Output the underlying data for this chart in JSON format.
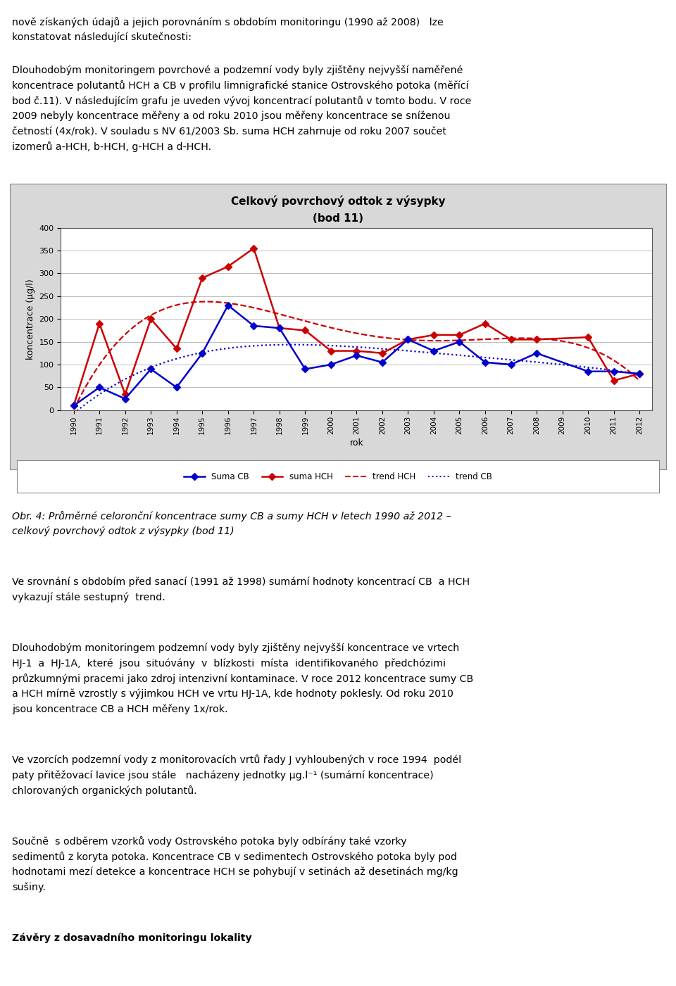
{
  "title_line1": "Celkový povrchový odtok z výsypky",
  "title_line2": "(bod 11)",
  "xlabel": "rok",
  "ylabel": "koncentrace (µg/l)",
  "years": [
    1990,
    1991,
    1992,
    1993,
    1994,
    1995,
    1996,
    1997,
    1998,
    1999,
    2000,
    2001,
    2002,
    2003,
    2004,
    2005,
    2006,
    2007,
    2008,
    2010,
    2011,
    2012
  ],
  "suma_cb": [
    10,
    50,
    25,
    90,
    50,
    125,
    230,
    185,
    180,
    90,
    100,
    120,
    105,
    155,
    130,
    150,
    105,
    100,
    125,
    85,
    85,
    80
  ],
  "suma_hch": [
    10,
    190,
    35,
    200,
    135,
    290,
    315,
    355,
    180,
    175,
    130,
    130,
    125,
    155,
    165,
    165,
    190,
    155,
    155,
    160,
    65,
    80
  ],
  "cb_color": "#0000CC",
  "hch_color": "#CC0000",
  "trend_hch_color": "#CC0000",
  "trend_cb_color": "#0000CC",
  "ylim": [
    0,
    400
  ],
  "yticks": [
    0,
    50,
    100,
    150,
    200,
    250,
    300,
    350,
    400
  ],
  "chart_bg_color": "#D8D8D8",
  "plot_bg_color": "#FFFFFF",
  "legend_cb_label": "Suma CB",
  "legend_hch_label": "suma HCH",
  "legend_trend_hch_label": "trend HCH",
  "legend_trend_cb_label": "trend CB",
  "para0_lines": [
    "nově získaných údajů a jejich porovnáním s obdobím monitoringu (1990 až 2008)   lze",
    "konstatovat následující skutečnosti:"
  ],
  "para1_lines": [
    "Dlouhodobým monitoringem povrchové a podzemní vody byly zjištěny nejvyšší naměřené",
    "koncentrace polutantů HCH a CB v profilu limnigrafické stanice Ostrovského potoka (měřící",
    "bod č.11). V následujícím grafu je uveden vývoj koncentrací polutantů v tomto bodu. V roce",
    "2009 nebyly koncentrace měřeny a od roku 2010 jsou měřeny koncentrace se sníženou",
    "četností (4x/rok). V souladu s NV 61/2003 Sb. suma HCH zahrnuje od roku 2007 součet",
    "izomerů a-HCH, b-HCH, g-HCH a d-HCH."
  ],
  "caption_lines": [
    "Obr. 4: Průměrné celoronční koncentrace sumy CB a sumy HCH v letech 1990 až 2012 –",
    "celkový povrchový odtok z výsypky (bod 11)"
  ],
  "para2_lines": [
    "Ve srovnání s obdobím před sanací (1991 až 1998) sumární hodnoty koncentrací CB  a HCH",
    "vykazují stále sestupný  trend."
  ],
  "para3_lines": [
    "Dlouhodobým monitoringem podzemní vody byly zjištěny nejvyšší koncentrace ve vrtech",
    "HJ-1  a  HJ-1A,  které  jsou  situóvány  v  blízkosti  místa  identifikovaného  předchózimi",
    "průzkumnými pracemi jako zdroj intenzivní kontaminace. V roce 2012 koncentrace sumy CB",
    "a HCH mírně vzrostly s výjimkou HCH ve vrtu HJ-1A, kde hodnoty poklesly. Od roku 2010",
    "jsou koncentrace CB a HCH měřeny 1x/rok."
  ],
  "para4_lines": [
    "Ve vzorcích podzemní vody z monitorovacích vrtů řady J vyhloubených v roce 1994  podél",
    "paty přitěžovací lavice jsou stále   nacházeny jednotky µg.l⁻¹ (sumární koncentrace)",
    "chlorovaných organických polutantů."
  ],
  "para5_lines": [
    "Součně  s odběrem vzorků vody Ostrovského potoka byly odbírány také vzorky",
    "sedimentů z koryta potoka. Koncentrace CB v sedimentech Ostrovského potoka byly pod",
    "hodnotami mezí detekce a koncentrace HCH se pohybují v setinách až desetinách mg/kg",
    "sušiny."
  ],
  "heading_text": "Závěry z dosavadního monitoringu lokality"
}
